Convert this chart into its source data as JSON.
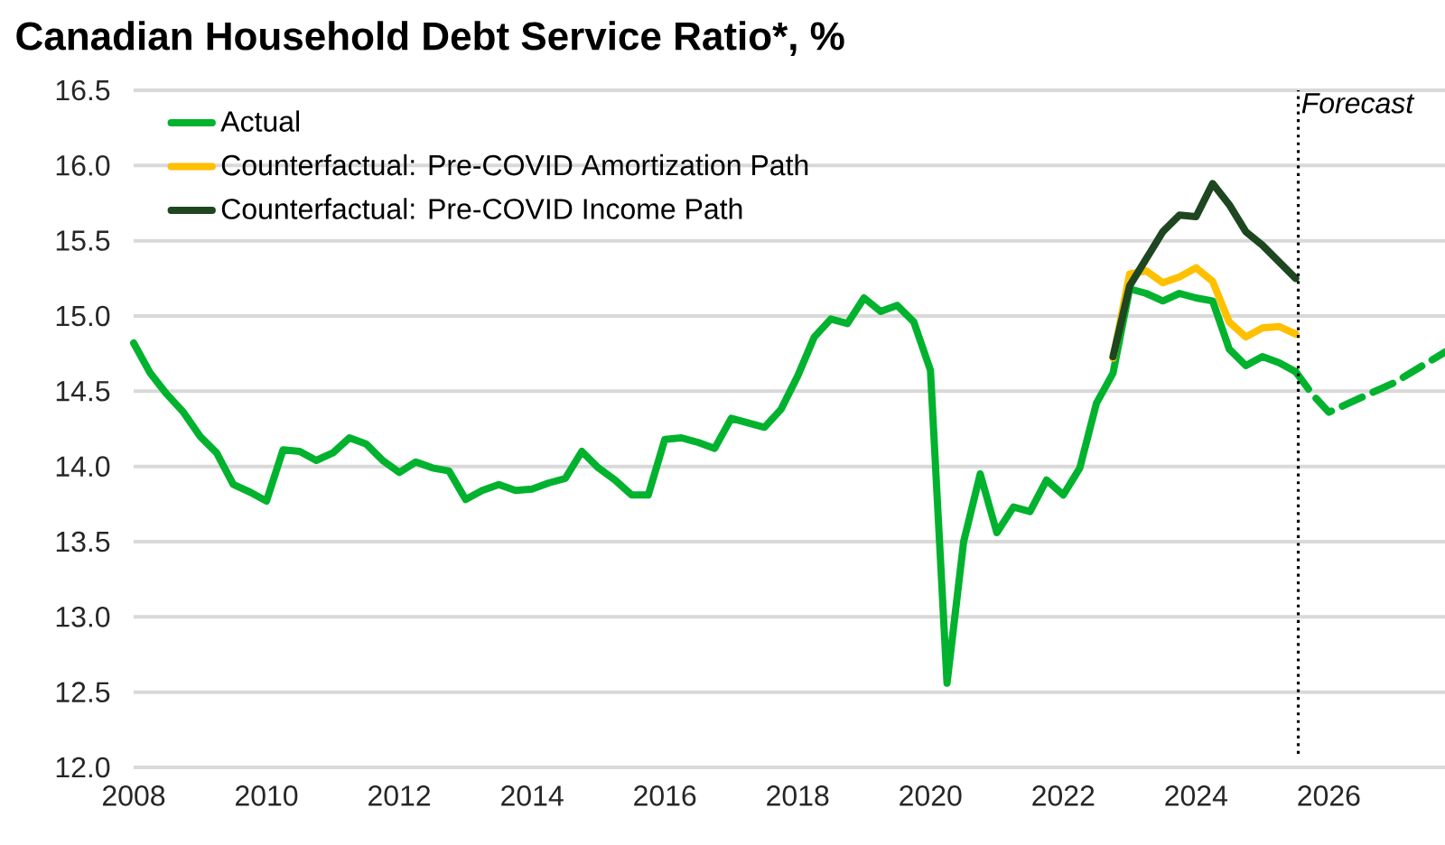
{
  "chart_data": {
    "type": "line",
    "title": "Canadian Household Debt Service Ratio*, %",
    "x": [
      2008,
      2008.25,
      2008.5,
      2008.75,
      2009,
      2009.25,
      2009.5,
      2009.75,
      2010,
      2010.25,
      2010.5,
      2010.75,
      2011,
      2011.25,
      2011.5,
      2011.75,
      2012,
      2012.25,
      2012.5,
      2012.75,
      2013,
      2013.25,
      2013.5,
      2013.75,
      2014,
      2014.25,
      2014.5,
      2014.75,
      2015,
      2015.25,
      2015.5,
      2015.75,
      2016,
      2016.25,
      2016.5,
      2016.75,
      2017,
      2017.25,
      2017.5,
      2017.75,
      2018,
      2018.25,
      2018.5,
      2018.75,
      2019,
      2019.25,
      2019.5,
      2019.75,
      2020,
      2020.25,
      2020.5,
      2020.75,
      2021,
      2021.25,
      2021.5,
      2021.75,
      2022,
      2022.25,
      2022.5,
      2022.75,
      2023,
      2023.25,
      2023.5,
      2023.75,
      2024,
      2024.25,
      2024.5,
      2024.75,
      2025,
      2025.25,
      2025.5
    ],
    "series": [
      {
        "name": "Actual",
        "color": "#00b22d",
        "values": [
          14.82,
          14.62,
          14.48,
          14.36,
          14.2,
          14.09,
          13.88,
          13.83,
          13.77,
          14.11,
          14.1,
          14.04,
          14.09,
          14.19,
          14.15,
          14.04,
          13.96,
          14.03,
          13.99,
          13.97,
          13.78,
          13.84,
          13.88,
          13.84,
          13.85,
          13.89,
          13.92,
          14.1,
          13.99,
          13.91,
          13.81,
          13.81,
          14.18,
          14.19,
          14.16,
          14.12,
          14.32,
          14.29,
          14.26,
          14.38,
          14.6,
          14.86,
          14.98,
          14.95,
          15.12,
          15.03,
          15.07,
          14.96,
          14.64,
          12.56,
          13.5,
          13.95,
          13.56,
          13.73,
          13.7,
          13.91,
          13.81,
          13.99,
          14.42,
          14.62,
          15.18,
          15.15,
          15.1,
          15.15,
          15.12,
          15.1,
          14.78,
          14.67,
          14.73,
          14.69,
          14.63
        ]
      },
      {
        "name": "Counterfactual: Pre-COVID Amortization Path",
        "color": "#ffc000",
        "x": [
          2022.75,
          2023,
          2023.25,
          2023.5,
          2023.75,
          2024,
          2024.25,
          2024.5,
          2024.75,
          2025,
          2025.25,
          2025.5
        ],
        "values": [
          14.72,
          15.28,
          15.3,
          15.22,
          15.26,
          15.32,
          15.23,
          14.96,
          14.86,
          14.92,
          14.93,
          14.88
        ]
      },
      {
        "name": "Counterfactual: Pre-COVID Income Path",
        "color": "#1e4620",
        "x": [
          2022.75,
          2023,
          2023.25,
          2023.5,
          2023.75,
          2024,
          2024.25,
          2024.5,
          2024.75,
          2025,
          2025.25,
          2025.5
        ],
        "values": [
          14.73,
          15.2,
          15.38,
          15.56,
          15.67,
          15.66,
          15.88,
          15.74,
          15.56,
          15.47,
          15.36,
          15.25
        ]
      },
      {
        "color": "#00b22d",
        "line_style": "dashed",
        "x": [
          2025.5,
          2025.75,
          2026,
          2027,
          2027.75
        ],
        "values": [
          14.63,
          14.48,
          14.36,
          14.56,
          14.76
        ]
      }
    ],
    "xlim": [
      2008,
      2027.75
    ],
    "xticks": [
      2008,
      2010,
      2012,
      2014,
      2016,
      2018,
      2020,
      2022,
      2024,
      2026
    ],
    "ylim": [
      12,
      16.5
    ],
    "yticks": [
      {
        "value": 12,
        "label": "12.0"
      },
      {
        "value": 12.5,
        "label": "12.5"
      },
      {
        "value": 13,
        "label": "13.0"
      },
      {
        "value": 13.5,
        "label": "13.5"
      },
      {
        "value": 14,
        "label": "14.0"
      },
      {
        "value": 14.5,
        "label": "14.5"
      },
      {
        "value": 15,
        "label": "15.0"
      },
      {
        "value": 15.5,
        "label": "15.5"
      },
      {
        "value": 16,
        "label": "16.0"
      },
      {
        "value": 16.5,
        "label": "16.5"
      }
    ],
    "grid": "y",
    "legend": "top left",
    "line_style": "solid",
    "marker": "none",
    "ref_lines": [
      {
        "axis": "x",
        "value": 2025.54,
        "label": "Forecast",
        "line_style": "dotted"
      }
    ]
  }
}
